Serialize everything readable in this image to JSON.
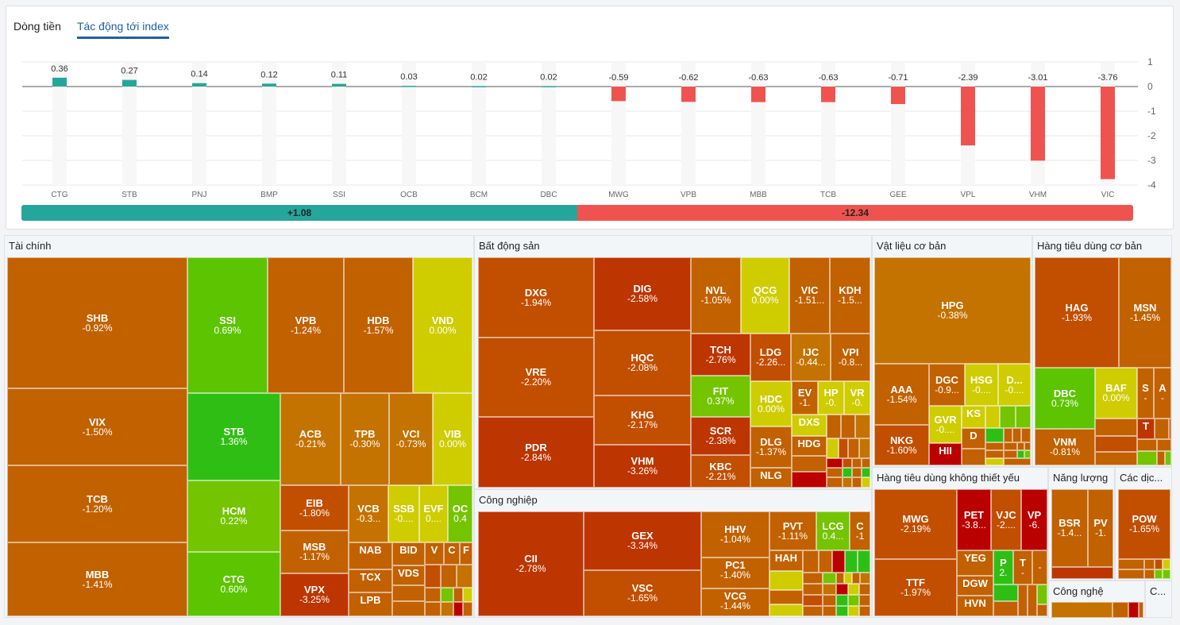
{
  "tabs": [
    {
      "label": "Dòng tiền",
      "active": false
    },
    {
      "label": "Tác động tới index",
      "active": true
    }
  ],
  "chart_data": {
    "type": "bar",
    "title": "Tác động tới index",
    "categories": [
      "CTG",
      "STB",
      "PNJ",
      "BMP",
      "SSI",
      "OCB",
      "BCM",
      "DBC",
      "MWG",
      "VPB",
      "MBB",
      "TCB",
      "GEE",
      "VPL",
      "VHM",
      "VIC"
    ],
    "values": [
      0.36,
      0.27,
      0.14,
      0.12,
      0.11,
      0.03,
      0.02,
      0.02,
      -0.59,
      -0.62,
      -0.63,
      -0.63,
      -0.71,
      -2.39,
      -3.01,
      -3.76
    ],
    "data_labels": [
      "0.36",
      "0.27",
      "0.14",
      "0.12",
      "0.11",
      "0.03",
      "0.02",
      "0.02",
      "-0.59",
      "-0.62",
      "-0.63",
      "-0.63",
      "-0.71",
      "-2.39",
      "-3.01",
      "-3.76"
    ],
    "ylim": [
      -4,
      1
    ],
    "yticks": [
      "1",
      "0",
      "-1",
      "-2",
      "-3",
      "-4"
    ],
    "yaxis_position": "right",
    "grid": true,
    "colors": {
      "positive": "#26a69a",
      "negative": "#ef5350"
    }
  },
  "summary": {
    "positive": "+1.08",
    "negative": "-12.34",
    "positive_value": 1.08,
    "negative_value": -12.34
  },
  "colors": {
    "pos_strong": "#2fbf14",
    "pos": "#5cc400",
    "pos_light": "#74c400",
    "flat": "#cfcc00",
    "neg_light": "#c47200",
    "neg": "#c26100",
    "neg_mid": "#c24e00",
    "neg_strong": "#bd3500",
    "neg_deep": "#bb0000"
  },
  "sectors": [
    {
      "name": "Tài chính",
      "tiles": [
        {
          "s": "SHB",
          "v": "-0.92%"
        },
        {
          "s": "VIX",
          "v": "-1.50%"
        },
        {
          "s": "TCB",
          "v": "-1.20%"
        },
        {
          "s": "MBB",
          "v": "-1.41%"
        },
        {
          "s": "SSI",
          "v": "0.69%"
        },
        {
          "s": "VPB",
          "v": "-1.24%"
        },
        {
          "s": "HDB",
          "v": "-1.57%"
        },
        {
          "s": "VND",
          "v": "0.00%"
        },
        {
          "s": "STB",
          "v": "1.36%"
        },
        {
          "s": "HCM",
          "v": "0.22%"
        },
        {
          "s": "CTG",
          "v": "0.60%"
        },
        {
          "s": "ACB",
          "v": "-0.21%"
        },
        {
          "s": "TPB",
          "v": "-0.30%"
        },
        {
          "s": "VCI",
          "v": "-0.73%"
        },
        {
          "s": "VIB",
          "v": "0.00%"
        },
        {
          "s": "EIB",
          "v": "-1.80%"
        },
        {
          "s": "MSB",
          "v": "-1.17%"
        },
        {
          "s": "VPX",
          "v": "-3.25%"
        },
        {
          "s": "VCB",
          "v": "-0.3..."
        },
        {
          "s": "SSB",
          "v": "-0...."
        },
        {
          "s": "EVF",
          "v": "0...."
        },
        {
          "s": "OC",
          "v": "0.4"
        },
        {
          "s": "NAB",
          "v": ""
        },
        {
          "s": "TCX",
          "v": ""
        },
        {
          "s": "LPB",
          "v": ""
        },
        {
          "s": "BID",
          "v": ""
        },
        {
          "s": "VDS",
          "v": ""
        },
        {
          "s": "V",
          "v": ""
        },
        {
          "s": "C",
          "v": ""
        },
        {
          "s": "F",
          "v": ""
        }
      ]
    },
    {
      "name": "Bất động sản",
      "tiles": [
        {
          "s": "DXG",
          "v": "-1.94%"
        },
        {
          "s": "VRE",
          "v": "-2.20%"
        },
        {
          "s": "PDR",
          "v": "-2.84%"
        },
        {
          "s": "DIG",
          "v": "-2.58%"
        },
        {
          "s": "HQC",
          "v": "-2.08%"
        },
        {
          "s": "KHG",
          "v": "-2.17%"
        },
        {
          "s": "VHM",
          "v": "-3.26%"
        },
        {
          "s": "NVL",
          "v": "-1.05%"
        },
        {
          "s": "QCG",
          "v": "0.00%"
        },
        {
          "s": "VIC",
          "v": "-1.51..."
        },
        {
          "s": "KDH",
          "v": "-1.5..."
        },
        {
          "s": "TCH",
          "v": "-2.76%"
        },
        {
          "s": "LDG",
          "v": "-2.26..."
        },
        {
          "s": "IJC",
          "v": "-0.44..."
        },
        {
          "s": "VPI",
          "v": "-0.8..."
        },
        {
          "s": "FIT",
          "v": "0.37%"
        },
        {
          "s": "HDC",
          "v": "0.00%"
        },
        {
          "s": "EV",
          "v": "-1."
        },
        {
          "s": "HP",
          "v": "-0."
        },
        {
          "s": "VR",
          "v": "-0."
        },
        {
          "s": "SCR",
          "v": "-2.38%"
        },
        {
          "s": "KBC",
          "v": "-2.21%"
        },
        {
          "s": "DLG",
          "v": "-1.37%"
        },
        {
          "s": "NLG",
          "v": ""
        },
        {
          "s": "DXS",
          "v": ""
        },
        {
          "s": "HDG",
          "v": ""
        }
      ]
    },
    {
      "name": "Công nghiệp",
      "tiles": [
        {
          "s": "CII",
          "v": "-2.78%"
        },
        {
          "s": "GEX",
          "v": "-3.34%"
        },
        {
          "s": "VSC",
          "v": "-1.65%"
        },
        {
          "s": "HHV",
          "v": "-1.04%"
        },
        {
          "s": "PC1",
          "v": "-1.40%"
        },
        {
          "s": "VCG",
          "v": "-1.44%"
        },
        {
          "s": "PVT",
          "v": "-1.11%"
        },
        {
          "s": "LCG",
          "v": "0.4..."
        },
        {
          "s": "C",
          "v": "-1"
        },
        {
          "s": "HAH",
          "v": ""
        }
      ]
    },
    {
      "name": "Vật liệu cơ bản",
      "tiles": [
        {
          "s": "HPG",
          "v": "-0.38%"
        },
        {
          "s": "AAA",
          "v": "-1.54%"
        },
        {
          "s": "NKG",
          "v": "-1.60%"
        },
        {
          "s": "DGC",
          "v": "-0.9..."
        },
        {
          "s": "HSG",
          "v": "-0...."
        },
        {
          "s": "D...",
          "v": "-0...."
        },
        {
          "s": "GVR",
          "v": "-0...."
        },
        {
          "s": "HII",
          "v": ""
        },
        {
          "s": "KS",
          "v": ""
        },
        {
          "s": "D",
          "v": ""
        }
      ]
    },
    {
      "name": "Hàng tiêu dùng cơ bản",
      "tiles": [
        {
          "s": "HAG",
          "v": "-1.93%"
        },
        {
          "s": "MSN",
          "v": "-1.45%"
        },
        {
          "s": "DBC",
          "v": "0.73%"
        },
        {
          "s": "BAF",
          "v": "0.00%"
        },
        {
          "s": "S",
          "v": "-"
        },
        {
          "s": "A",
          "v": "-"
        },
        {
          "s": "VNM",
          "v": "-0.81%"
        },
        {
          "s": "T",
          "v": ""
        }
      ]
    },
    {
      "name": "Hàng tiêu dùng không thiết yếu",
      "tiles": [
        {
          "s": "MWG",
          "v": "-2.19%"
        },
        {
          "s": "TTF",
          "v": "-1.97%"
        },
        {
          "s": "PET",
          "v": "-3.8..."
        },
        {
          "s": "VJC",
          "v": "-2...."
        },
        {
          "s": "VP",
          "v": "-6."
        },
        {
          "s": "YEG",
          "v": ""
        },
        {
          "s": "DGW",
          "v": ""
        },
        {
          "s": "HVN",
          "v": ""
        },
        {
          "s": "P",
          "v": "2."
        },
        {
          "s": "T",
          "v": "-"
        },
        {
          "s": "",
          "v": "-"
        }
      ]
    },
    {
      "name": "Năng lượng",
      "tiles": [
        {
          "s": "BSR",
          "v": "-1.4..."
        },
        {
          "s": "PV",
          "v": "-1."
        }
      ]
    },
    {
      "name": "Các dịc...",
      "tiles": [
        {
          "s": "POW",
          "v": "-1.65%"
        }
      ]
    },
    {
      "name": "Công nghệ",
      "tiles": []
    },
    {
      "name": "C...",
      "tiles": []
    }
  ]
}
